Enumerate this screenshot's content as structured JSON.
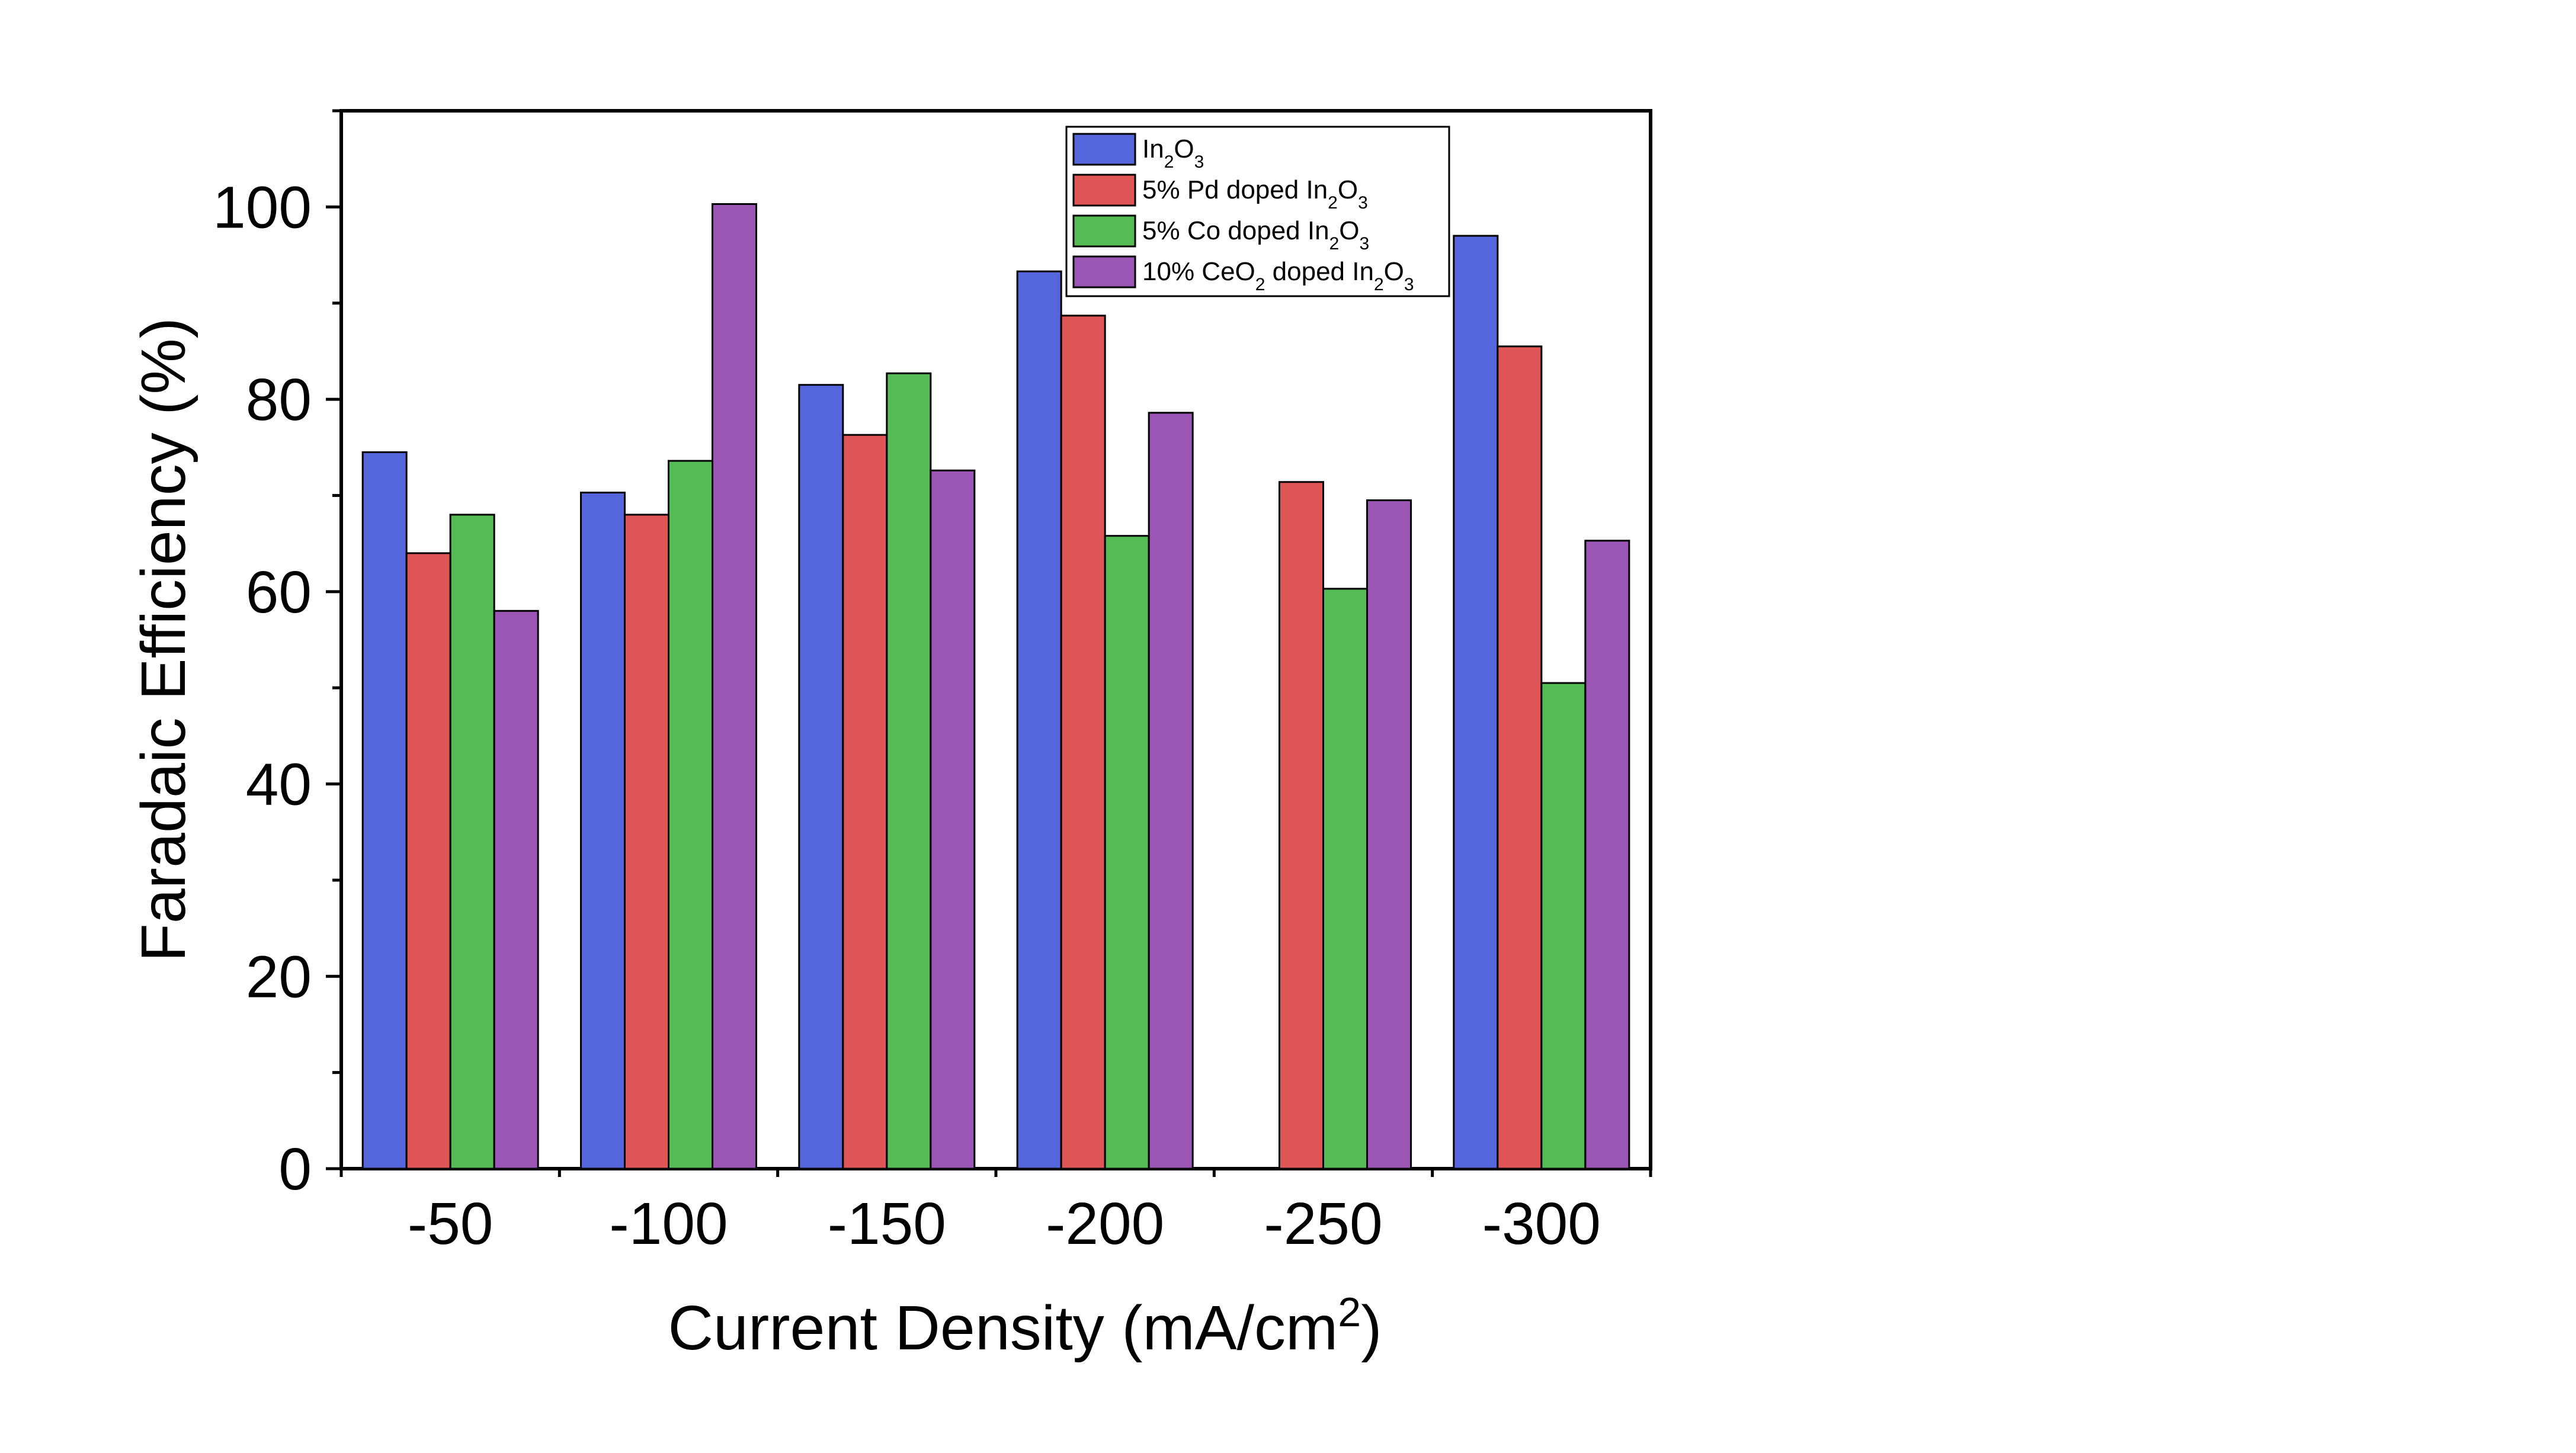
{
  "chart_data": {
    "type": "bar",
    "xlabel": "Current Density (mA/cm",
    "xlabel_sup": "2",
    "xlabel_end": ")",
    "ylabel": "Faradaic Efficiency (%)",
    "categories": [
      "-50",
      "-100",
      "-150",
      "-200",
      "-250",
      "-300"
    ],
    "ylim": [
      0,
      110
    ],
    "yticks": [
      "0",
      "20",
      "40",
      "60",
      "80",
      "100"
    ],
    "grid": false,
    "legend_position": "top-right",
    "series": [
      {
        "name": "In2O3",
        "color": "#5566dd",
        "values": [
          74.5,
          70.3,
          81.5,
          93.3,
          null,
          97.0
        ]
      },
      {
        "name": "5% Pd doped In2O3",
        "color": "#e05555",
        "values": [
          64.0,
          68.0,
          76.3,
          88.7,
          71.4,
          85.5
        ]
      },
      {
        "name": "5% Co doped In2O3",
        "color": "#55bb55",
        "values": [
          68.0,
          73.6,
          82.7,
          65.8,
          60.3,
          50.5
        ]
      },
      {
        "name": "10% CeO2 doped In2O3",
        "color": "#9a55b5",
        "values": [
          58.0,
          100.3,
          72.6,
          78.6,
          69.5,
          65.3
        ]
      }
    ],
    "legend": [
      {
        "parts": [
          [
            "In",
            ""
          ],
          [
            "2",
            "sub"
          ],
          [
            "O",
            ""
          ],
          [
            "3",
            "sub"
          ]
        ]
      },
      {
        "parts": [
          [
            "5% Pd doped In",
            ""
          ],
          [
            "2",
            "sub"
          ],
          [
            "O",
            ""
          ],
          [
            "3",
            "sub"
          ]
        ]
      },
      {
        "parts": [
          [
            "5% Co doped In",
            ""
          ],
          [
            "2",
            "sub"
          ],
          [
            "O",
            ""
          ],
          [
            "3",
            "sub"
          ]
        ]
      },
      {
        "parts": [
          [
            "10% CeO",
            ""
          ],
          [
            "2",
            "sub"
          ],
          [
            " doped In",
            ""
          ],
          [
            "2",
            "sub"
          ],
          [
            "O",
            ""
          ],
          [
            "3",
            "sub"
          ]
        ]
      }
    ]
  }
}
